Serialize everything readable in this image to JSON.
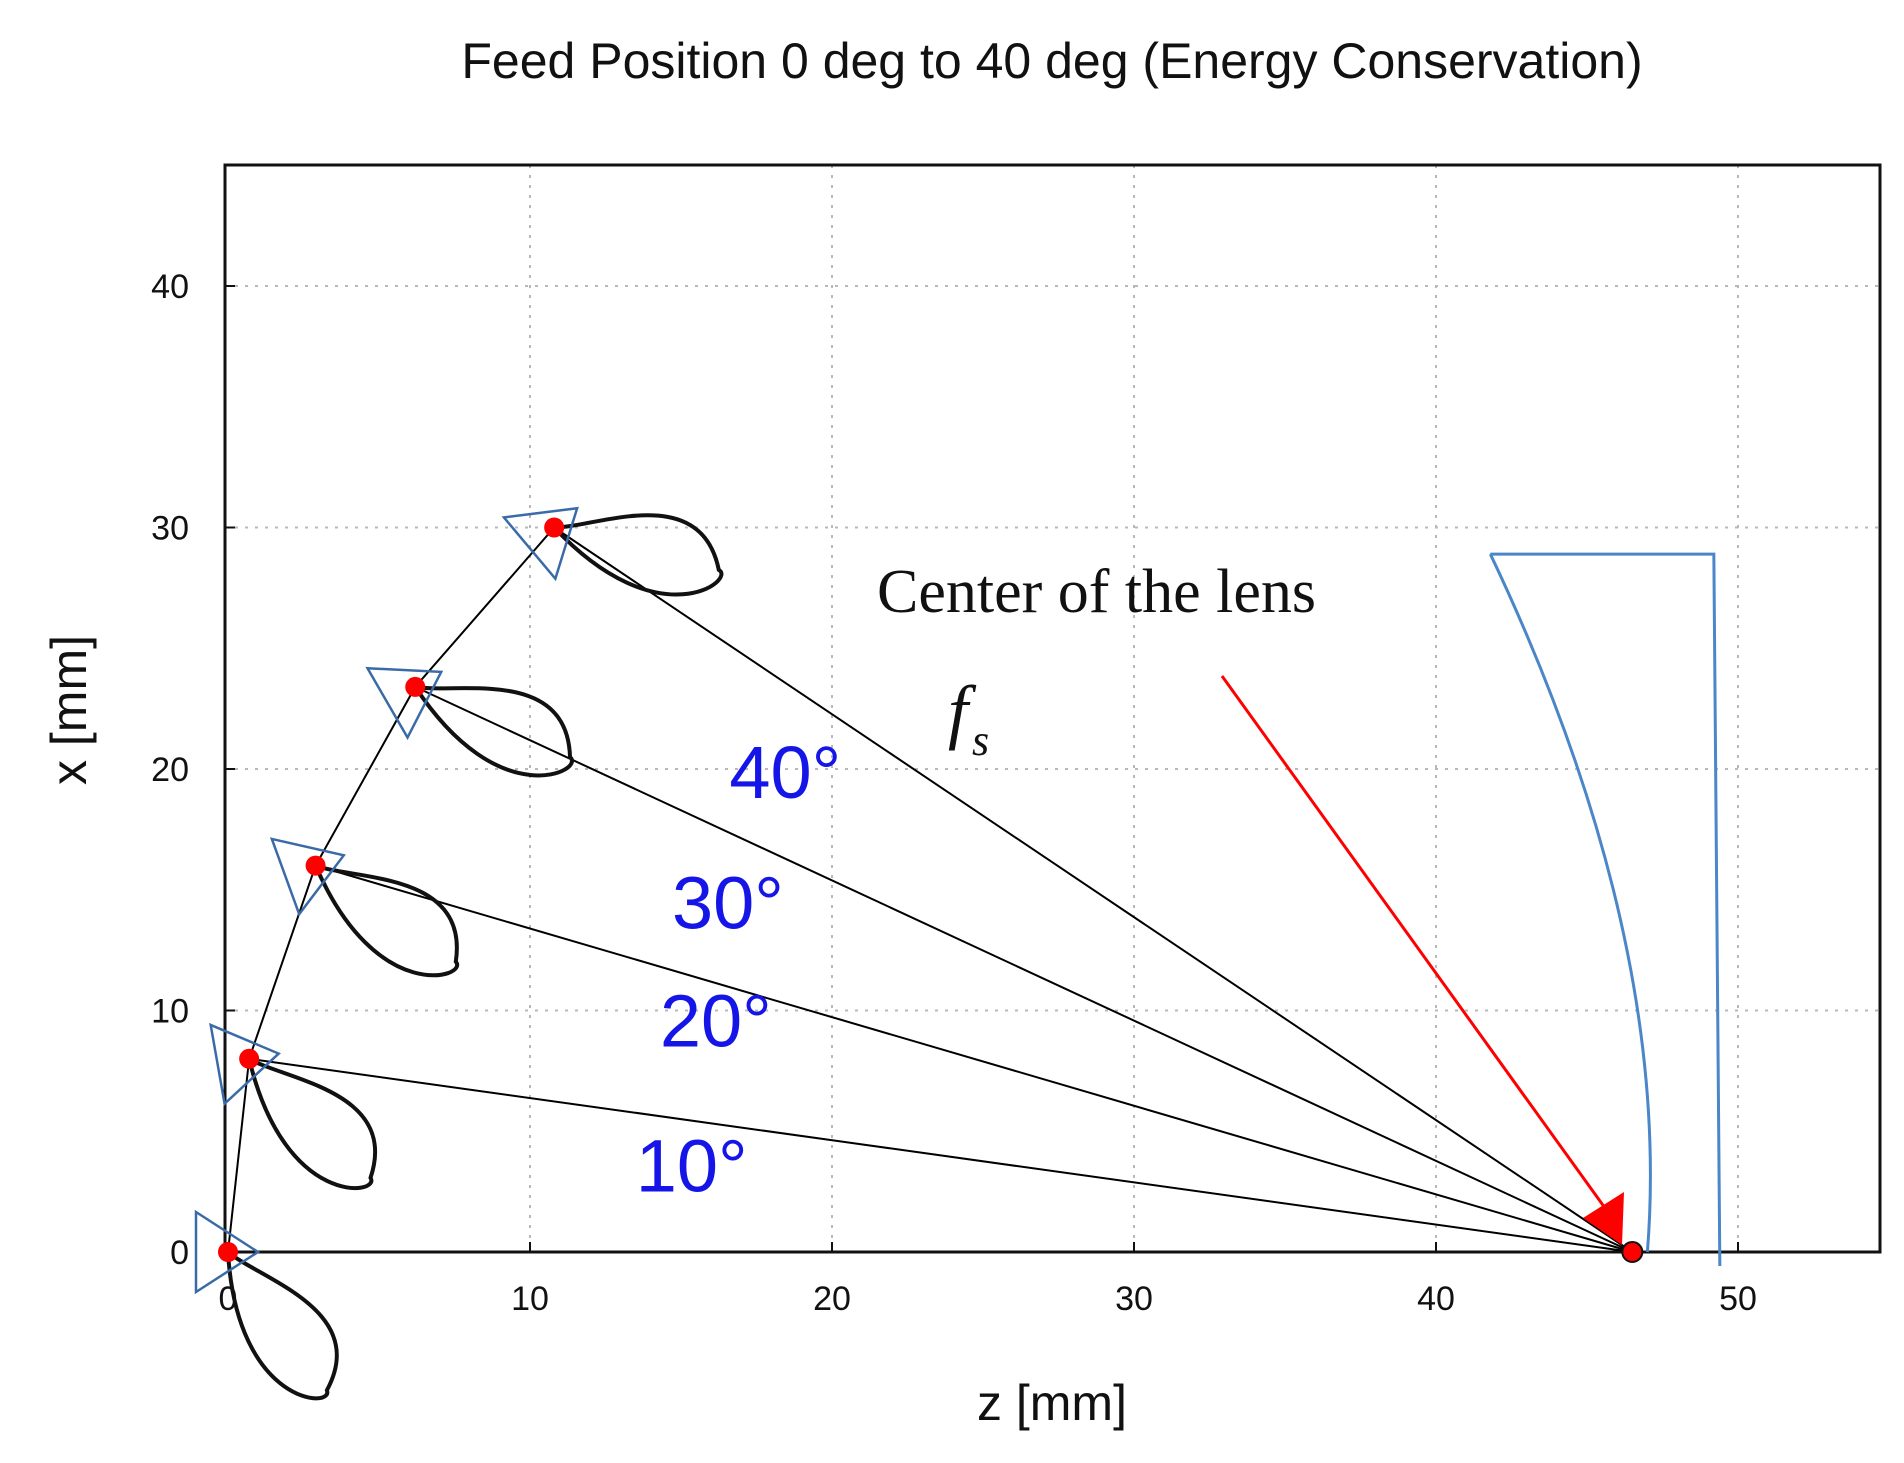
{
  "chart_data": {
    "type": "scatter",
    "title": "Feed Position 0 deg to 40 deg (Energy Conservation)",
    "xlabel": "z [mm]",
    "ylabel": "x [mm]",
    "xlim": [
      0,
      55
    ],
    "ylim": [
      0,
      45
    ],
    "xticks": [
      "0",
      "10",
      "20",
      "30",
      "40",
      "50"
    ],
    "yticks": [
      "0",
      "10",
      "20",
      "30",
      "40"
    ],
    "grid": true,
    "lens_center": {
      "z": 46.5,
      "x": 0
    },
    "feeds": [
      {
        "z": 0.0,
        "x": 0.0,
        "angle": 0
      },
      {
        "z": 0.7,
        "x": 8.0,
        "angle": 10
      },
      {
        "z": 2.9,
        "x": 16.0,
        "angle": 20
      },
      {
        "z": 6.2,
        "x": 23.4,
        "angle": 30
      },
      {
        "z": 10.8,
        "x": 30.0,
        "angle": 40
      }
    ],
    "angle_labels": [
      {
        "text": "10°",
        "z": 13.5,
        "x": 2.5
      },
      {
        "text": "20°",
        "z": 14.3,
        "x": 8.5
      },
      {
        "text": "30°",
        "z": 14.7,
        "x": 13.4
      },
      {
        "text": "40°",
        "z": 16.6,
        "x": 18.8
      }
    ],
    "annotations": [
      {
        "text": "Center of the lens"
      },
      {
        "text": "f",
        "subscript": "s"
      }
    ],
    "lens_profile": {
      "top_x": 28.9,
      "flat_z": 49.2,
      "curve_top_z": 41.8,
      "curve_bottom_z": 47.0
    },
    "colors": {
      "feed_point": "#ff0000",
      "ray": "#000000",
      "arrow": "#ff0000",
      "lens": "#4a86c8",
      "angle_text": "#1515e8",
      "triangle": "#3a6aa8"
    }
  }
}
